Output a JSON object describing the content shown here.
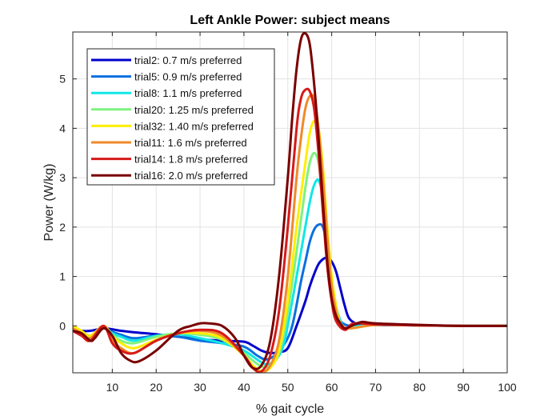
{
  "chart_data": {
    "type": "line",
    "title": "Left Ankle Power: subject means",
    "xlabel": "% gait cycle",
    "ylabel": "Power (W/kg)",
    "xlim": [
      1,
      100
    ],
    "ylim": [
      -0.95,
      5.95
    ],
    "xticks": [
      10,
      20,
      30,
      40,
      50,
      60,
      70,
      80,
      90,
      100
    ],
    "yticks": [
      0,
      1,
      2,
      3,
      4,
      5
    ],
    "grid": true,
    "legend_position": "top-left",
    "series": [
      {
        "name": "trial2: 0.7 m/s preferred",
        "color": "#0000cc",
        "x": [
          1,
          3,
          5,
          8,
          10,
          12,
          15,
          20,
          25,
          30,
          35,
          40,
          42,
          44,
          46,
          48,
          50,
          52,
          54,
          55,
          56,
          57,
          58,
          59,
          60,
          61,
          62,
          63,
          64,
          66,
          68,
          70,
          80,
          90,
          100
        ],
        "y": [
          -0.05,
          -0.1,
          -0.1,
          -0.05,
          -0.07,
          -0.1,
          -0.13,
          -0.17,
          -0.22,
          -0.27,
          -0.3,
          -0.32,
          -0.4,
          -0.5,
          -0.55,
          -0.53,
          -0.45,
          0,
          0.5,
          0.8,
          1.05,
          1.25,
          1.35,
          1.38,
          1.3,
          1.1,
          0.75,
          0.4,
          0.15,
          0.03,
          0.02,
          0.02,
          0.01,
          0.0,
          0.0
        ]
      },
      {
        "name": "trial5: 0.9 m/s preferred",
        "color": "#0a6fe0",
        "x": [
          1,
          3,
          5,
          8,
          10,
          12,
          15,
          20,
          25,
          30,
          35,
          40,
          43,
          45,
          47,
          49,
          51,
          53,
          54,
          55,
          56,
          57,
          58,
          59,
          60,
          61,
          62,
          64,
          66,
          70,
          80,
          90,
          100
        ],
        "y": [
          -0.05,
          -0.12,
          -0.2,
          -0.05,
          -0.12,
          -0.18,
          -0.25,
          -0.2,
          -0.22,
          -0.3,
          -0.35,
          -0.42,
          -0.6,
          -0.68,
          -0.6,
          -0.4,
          0,
          0.9,
          1.3,
          1.7,
          1.95,
          2.05,
          2.0,
          1.6,
          0.9,
          0.4,
          0.1,
          0.0,
          0.0,
          0.02,
          0.01,
          0.0,
          0.0
        ]
      },
      {
        "name": "trial8: 1.1 m/s preferred",
        "color": "#11e6e6",
        "x": [
          1,
          3,
          5,
          8,
          10,
          12,
          15,
          20,
          25,
          30,
          35,
          40,
          43,
          45,
          47,
          49,
          51,
          53,
          55,
          56,
          57,
          58,
          59,
          60,
          61,
          62,
          63,
          65,
          70,
          80,
          90,
          100
        ],
        "y": [
          -0.05,
          -0.15,
          -0.22,
          -0.05,
          -0.15,
          -0.22,
          -0.3,
          -0.2,
          -0.17,
          -0.25,
          -0.35,
          -0.5,
          -0.68,
          -0.78,
          -0.7,
          -0.4,
          0.5,
          1.5,
          2.5,
          2.85,
          2.95,
          2.6,
          1.8,
          1.0,
          0.4,
          0.1,
          -0.05,
          -0.02,
          0.02,
          0.01,
          0.0,
          0.0
        ]
      },
      {
        "name": "trial20: 1.25 m/s preferred",
        "color": "#7ef27e",
        "x": [
          1,
          3,
          5,
          8,
          10,
          12,
          15,
          20,
          25,
          30,
          35,
          40,
          42,
          44,
          46,
          48,
          50,
          52,
          54,
          55,
          56,
          57,
          58,
          59,
          60,
          61,
          62,
          64,
          70,
          80,
          90,
          100
        ],
        "y": [
          -0.05,
          -0.15,
          -0.25,
          -0.05,
          -0.18,
          -0.3,
          -0.35,
          -0.22,
          -0.15,
          -0.18,
          -0.28,
          -0.55,
          -0.7,
          -0.82,
          -0.8,
          -0.55,
          0.3,
          1.5,
          2.8,
          3.3,
          3.5,
          3.3,
          2.6,
          1.6,
          0.8,
          0.3,
          0.0,
          -0.05,
          0.02,
          0.01,
          0.0,
          0.0
        ]
      },
      {
        "name": "trial32: 1.40 m/s preferred",
        "color": "#ffee00",
        "x": [
          1,
          3,
          5,
          8,
          10,
          12,
          15,
          20,
          25,
          30,
          35,
          40,
          42,
          44,
          46,
          48,
          50,
          52,
          54,
          55,
          56,
          57,
          58,
          59,
          60,
          61,
          62,
          64,
          70,
          80,
          90,
          100
        ],
        "y": [
          0.0,
          -0.1,
          -0.2,
          0.0,
          -0.2,
          -0.35,
          -0.45,
          -0.28,
          -0.15,
          -0.15,
          -0.25,
          -0.6,
          -0.8,
          -0.92,
          -0.85,
          -0.5,
          0.5,
          2.0,
          3.3,
          3.9,
          4.15,
          4.0,
          3.2,
          2.0,
          1.0,
          0.4,
          0.05,
          -0.05,
          0.02,
          0.01,
          0.0,
          0.0
        ]
      },
      {
        "name": "trial11: 1.6 m/s preferred",
        "color": "#f08a2a",
        "x": [
          1,
          3,
          5,
          8,
          10,
          12,
          15,
          20,
          25,
          30,
          35,
          40,
          42,
          44,
          46,
          48,
          50,
          52,
          53,
          54,
          55,
          56,
          57,
          58,
          59,
          60,
          61,
          62,
          64,
          70,
          80,
          90,
          100
        ],
        "y": [
          -0.05,
          -0.15,
          -0.25,
          0.0,
          -0.3,
          -0.45,
          -0.55,
          -0.3,
          -0.15,
          -0.1,
          -0.2,
          -0.6,
          -0.85,
          -0.95,
          -0.8,
          -0.3,
          1.0,
          3.0,
          3.8,
          4.4,
          4.65,
          4.6,
          4.0,
          3.0,
          1.8,
          0.8,
          0.3,
          0.05,
          -0.05,
          0.02,
          0.01,
          0.0,
          0.0
        ]
      },
      {
        "name": "trial14: 1.8 m/s preferred",
        "color": "#d61a1a",
        "x": [
          1,
          3,
          5,
          8,
          10,
          12,
          15,
          20,
          25,
          30,
          35,
          40,
          42,
          44,
          46,
          48,
          50,
          52,
          53,
          54,
          55,
          56,
          57,
          58,
          59,
          60,
          61,
          63,
          65,
          70,
          80,
          90,
          100
        ],
        "y": [
          -0.1,
          -0.2,
          -0.3,
          0.0,
          -0.35,
          -0.5,
          -0.55,
          -0.3,
          -0.15,
          -0.08,
          -0.15,
          -0.6,
          -0.85,
          -0.92,
          -0.6,
          0.3,
          2.0,
          4.0,
          4.6,
          4.78,
          4.75,
          4.4,
          3.5,
          2.3,
          1.2,
          0.5,
          0.1,
          -0.08,
          0.05,
          0.03,
          0.01,
          0.0,
          0.0
        ]
      },
      {
        "name": "trial16: 2.0 m/s preferred",
        "color": "#7a0000",
        "x": [
          1,
          3,
          5,
          6,
          8,
          10,
          12,
          14,
          16,
          20,
          25,
          28,
          30,
          32,
          35,
          38,
          40,
          42,
          44,
          46,
          48,
          50,
          51,
          52,
          53,
          54,
          55,
          56,
          57,
          58,
          59,
          60,
          61,
          62,
          63,
          65,
          67,
          70,
          80,
          90,
          100
        ],
        "y": [
          -0.1,
          -0.15,
          -0.3,
          -0.25,
          -0.05,
          -0.2,
          -0.55,
          -0.7,
          -0.72,
          -0.5,
          -0.1,
          0.0,
          0.05,
          0.05,
          0.0,
          -0.25,
          -0.6,
          -0.85,
          -0.8,
          -0.3,
          1.0,
          3.0,
          4.2,
          5.2,
          5.8,
          5.92,
          5.7,
          4.9,
          3.8,
          2.5,
          1.3,
          0.55,
          0.2,
          0.05,
          -0.05,
          0.02,
          0.08,
          0.05,
          0.02,
          0.0,
          0.0
        ]
      }
    ]
  }
}
